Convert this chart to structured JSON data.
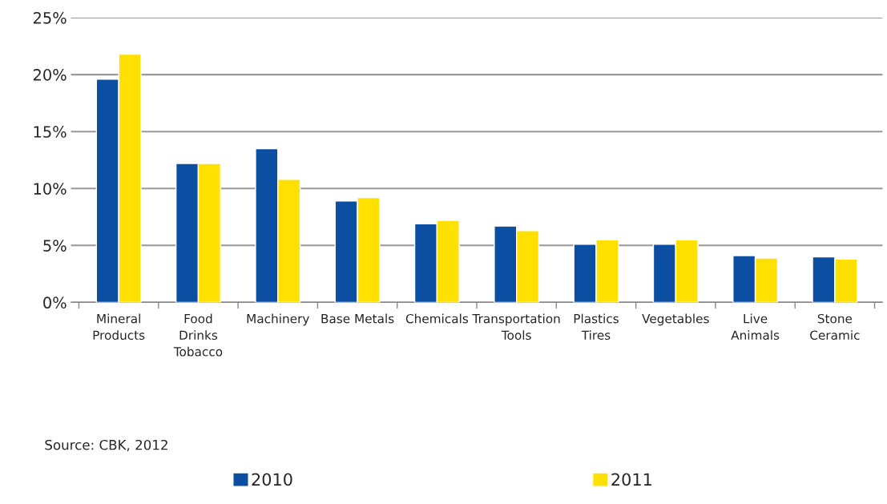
{
  "chart_data": {
    "type": "bar",
    "categories": [
      "Mineral\nProducts",
      "Food\nDrinks\nTobacco",
      "Machinery",
      "Base Metals",
      "Chemicals",
      "Transportation\nTools",
      "Plastics\nTires",
      "Vegetables",
      "Live\nAnimals",
      "Stone\nCeramic"
    ],
    "series": [
      {
        "name": "2010",
        "color": "#0b4ea2",
        "values": [
          19.6,
          12.2,
          13.5,
          8.9,
          6.9,
          6.7,
          5.1,
          5.1,
          4.1,
          4.0
        ]
      },
      {
        "name": "2011",
        "color": "#ffe000",
        "values": [
          21.8,
          12.2,
          10.8,
          9.2,
          7.2,
          6.3,
          5.5,
          5.5,
          3.9,
          3.8
        ]
      }
    ],
    "ylim": [
      0,
      25
    ],
    "yticks": [
      {
        "value": 0,
        "label": "0%"
      },
      {
        "value": 5,
        "label": "5%"
      },
      {
        "value": 10,
        "label": "10%"
      },
      {
        "value": 15,
        "label": "15%"
      },
      {
        "value": 20,
        "label": "20%"
      },
      {
        "value": 25,
        "label": "25%"
      }
    ],
    "grid": "y",
    "legend": "bottom",
    "annotations": [
      "Source: CBK, 2012"
    ]
  }
}
